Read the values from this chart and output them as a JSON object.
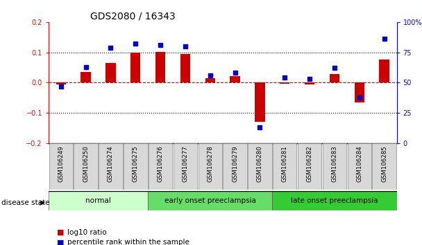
{
  "title": "GDS2080 / 16343",
  "samples": [
    "GSM106249",
    "GSM106250",
    "GSM106274",
    "GSM106275",
    "GSM106276",
    "GSM106277",
    "GSM106278",
    "GSM106279",
    "GSM106280",
    "GSM106281",
    "GSM106282",
    "GSM106283",
    "GSM106284",
    "GSM106285"
  ],
  "log10_ratio": [
    -0.005,
    0.035,
    0.065,
    0.1,
    0.102,
    0.095,
    0.015,
    0.022,
    -0.13,
    -0.003,
    -0.005,
    0.028,
    -0.065,
    0.077
  ],
  "percentile_rank": [
    47,
    63,
    79,
    82,
    81,
    80,
    56,
    58,
    13,
    54,
    53,
    62,
    38,
    86
  ],
  "disease_groups": [
    {
      "label": "normal",
      "start": 0,
      "end": 4,
      "color": "#ccffcc"
    },
    {
      "label": "early onset preeclampsia",
      "start": 4,
      "end": 9,
      "color": "#66dd66"
    },
    {
      "label": "late onset preeclampsia",
      "start": 9,
      "end": 14,
      "color": "#33cc33"
    }
  ],
  "bar_color_red": "#cc0000",
  "bar_color_blue": "#0000cc",
  "ylim_left": [
    -0.2,
    0.2
  ],
  "ylim_right": [
    0,
    100
  ],
  "yticks_left": [
    -0.2,
    -0.1,
    0.0,
    0.1,
    0.2
  ],
  "yticks_right": [
    0,
    25,
    50,
    75,
    100
  ],
  "title_fontsize": 10,
  "tick_fontsize": 7,
  "bar_width": 0.4,
  "blue_marker_size": 18
}
